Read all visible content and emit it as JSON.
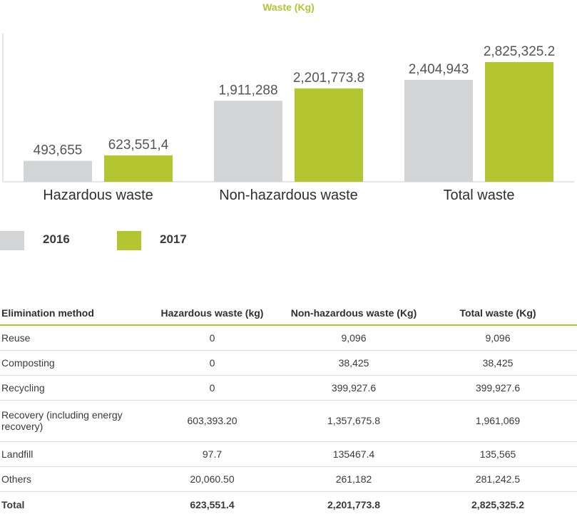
{
  "chart_data": {
    "type": "bar",
    "title": "Waste (Kg)",
    "categories": [
      "Hazardous waste",
      "Non-hazardous waste",
      "Total waste"
    ],
    "series": [
      {
        "name": "2016",
        "values": [
          493655,
          1911288,
          2404943
        ],
        "labels": [
          "493,655",
          "1,911,288",
          "2,404,943"
        ]
      },
      {
        "name": "2017",
        "values": [
          623551.4,
          2201773.8,
          2825325.2
        ],
        "labels": [
          "623,551,4",
          "2,201,773.8",
          "2,825,325.2"
        ]
      }
    ],
    "ylim": [
      0,
      3500000
    ],
    "grid": false,
    "legend_position": "bottom-left"
  },
  "colors": {
    "series_2016": "#d3d4d6",
    "series_2017": "#b3c531",
    "title": "#b3c531",
    "axis": "#cccccc"
  },
  "table": {
    "headers": [
      "Elimination method",
      "Hazardous waste (kg)",
      "Non-hazardous waste (Kg)",
      "Total waste (Kg)"
    ],
    "rows": [
      [
        "Reuse",
        "0",
        "9,096",
        "9,096"
      ],
      [
        "Composting",
        "0",
        "38,425",
        "38,425"
      ],
      [
        "Recycling",
        "0",
        "399,927.6",
        "399,927.6"
      ],
      [
        "Recovery (including energy recovery)",
        "603,393.20",
        "1,357,675.8",
        "1,961,069"
      ],
      [
        "Landfill",
        "97.7",
        "135467.4",
        "135,565"
      ],
      [
        "Others",
        "20,060.50",
        "261,182",
        "281,242.5"
      ]
    ],
    "total": [
      "Total",
      "623,551.4",
      "2,201,773.8",
      "2,825,325.2"
    ]
  }
}
